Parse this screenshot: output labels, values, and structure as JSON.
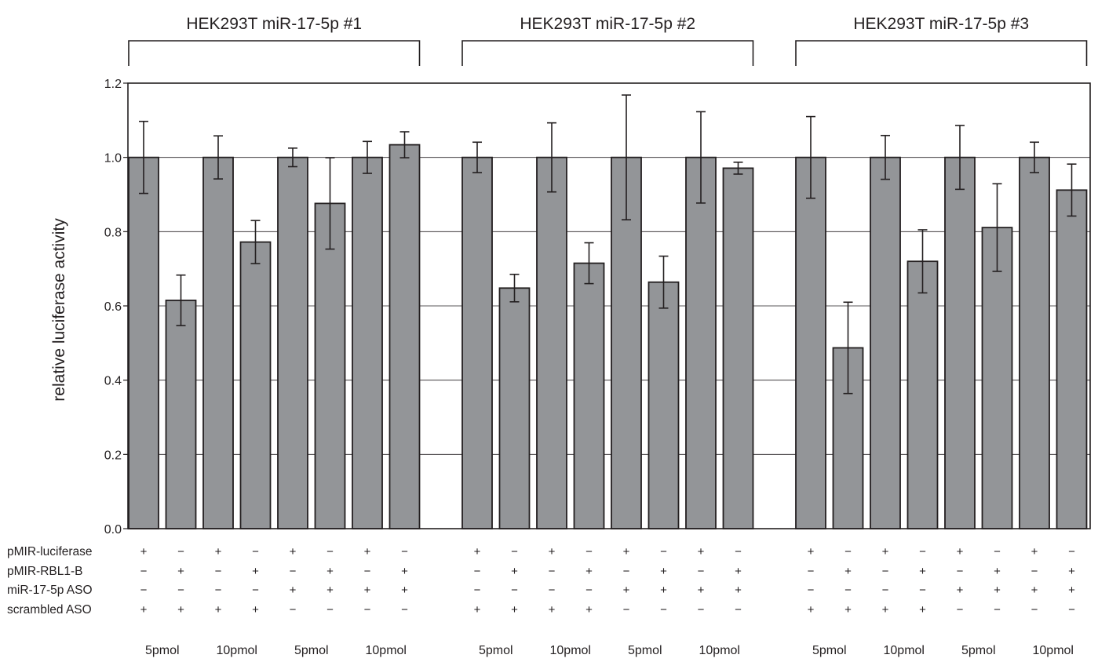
{
  "chart_data": {
    "type": "bar",
    "ylabel": "relative luciferase activity",
    "ylim": [
      0,
      1.2
    ],
    "yticks": [
      "0.0",
      "0.2",
      "0.4",
      "0.6",
      "0.8",
      "1.0",
      "1.2"
    ],
    "grid": true,
    "bar_color": "#939598",
    "row_labels": [
      "pMIR-luciferase",
      "pMIR-RBL1-B",
      "miR-17-5p ASO",
      "scrambled ASO"
    ],
    "dose_labels": [
      "5pmol",
      "10pmol",
      "5pmol",
      "10pmol"
    ],
    "groups": [
      {
        "title": "HEK293T miR-17-5p #1",
        "values": [
          1.0,
          0.615,
          1.0,
          0.772,
          1.0,
          0.876,
          1.0,
          1.034
        ],
        "errors": [
          0.097,
          0.068,
          0.058,
          0.058,
          0.025,
          0.123,
          0.043,
          0.035
        ],
        "signs": [
          [
            "+",
            "−",
            "+",
            "−",
            "+",
            "−",
            "+",
            "−"
          ],
          [
            "−",
            "+",
            "−",
            "+",
            "−",
            "+",
            "−",
            "+"
          ],
          [
            "−",
            "−",
            "−",
            "−",
            "+",
            "+",
            "+",
            "+"
          ],
          [
            "+",
            "+",
            "+",
            "+",
            "−",
            "−",
            "−",
            "−"
          ]
        ]
      },
      {
        "title": "HEK293T miR-17-5p #2",
        "values": [
          1.0,
          0.648,
          1.0,
          0.715,
          1.0,
          0.664,
          1.0,
          0.971
        ],
        "errors": [
          0.041,
          0.037,
          0.093,
          0.055,
          0.168,
          0.07,
          0.123,
          0.016
        ],
        "signs": [
          [
            "+",
            "−",
            "+",
            "−",
            "+",
            "−",
            "+",
            "−"
          ],
          [
            "−",
            "+",
            "−",
            "+",
            "−",
            "+",
            "−",
            "+"
          ],
          [
            "−",
            "−",
            "−",
            "−",
            "+",
            "+",
            "+",
            "+"
          ],
          [
            "+",
            "+",
            "+",
            "+",
            "−",
            "−",
            "−",
            "−"
          ]
        ]
      },
      {
        "title": "HEK293T miR-17-5p #3",
        "values": [
          1.0,
          0.487,
          1.0,
          0.72,
          1.0,
          0.811,
          1.0,
          0.912
        ],
        "errors": [
          0.11,
          0.123,
          0.059,
          0.085,
          0.086,
          0.118,
          0.041,
          0.07
        ],
        "signs": [
          [
            "+",
            "−",
            "+",
            "−",
            "+",
            "−",
            "+",
            "−"
          ],
          [
            "−",
            "+",
            "−",
            "+",
            "−",
            "+",
            "−",
            "+"
          ],
          [
            "−",
            "−",
            "−",
            "−",
            "+",
            "+",
            "+",
            "+"
          ],
          [
            "+",
            "+",
            "+",
            "+",
            "−",
            "−",
            "−",
            "−"
          ]
        ]
      }
    ]
  }
}
